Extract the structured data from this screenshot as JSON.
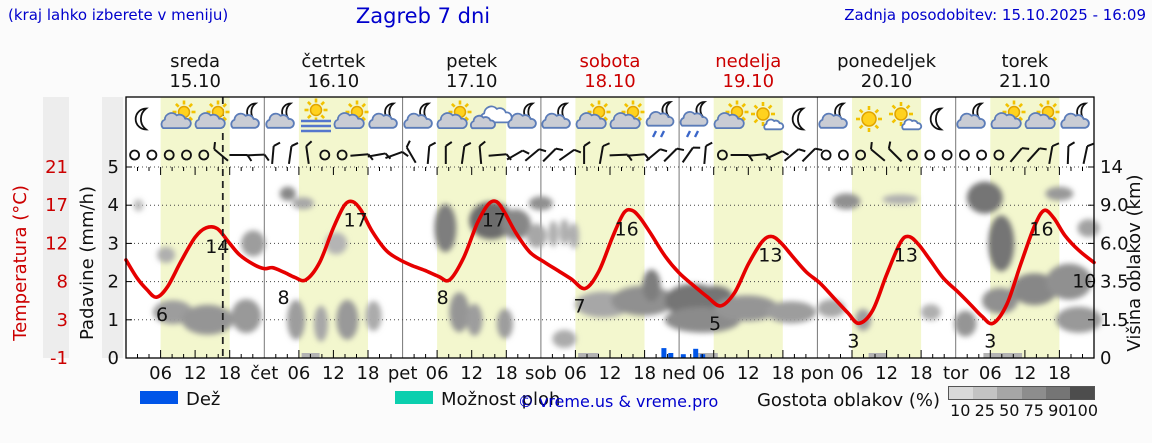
{
  "header": {
    "hint": "(kraj lahko izberete v meniju)",
    "title": "Zagreb 7 dni",
    "updated": "Zadnja posodobitev: 15.10.2025 - 16:09"
  },
  "days": [
    {
      "name": "sreda",
      "date": "15.10",
      "red": false
    },
    {
      "name": "četrtek",
      "date": "16.10",
      "red": false
    },
    {
      "name": "petek",
      "date": "17.10",
      "red": false
    },
    {
      "name": "sobota",
      "date": "18.10",
      "red": true
    },
    {
      "name": "nedelja",
      "date": "19.10",
      "red": true
    },
    {
      "name": "ponedeljek",
      "date": "20.10",
      "red": false
    },
    {
      "name": "torek",
      "date": "21.10",
      "red": false
    }
  ],
  "axes": {
    "temp_label": "Temperatura (°C)",
    "temp_ticks": [
      "21",
      "17",
      "12",
      "8",
      "3",
      "-1"
    ],
    "precip_label": "Padavine (mm/h)",
    "precip_ticks": [
      "5",
      "4",
      "3",
      "2",
      "1",
      "0"
    ],
    "cloud_label": "Višina oblakov (km)",
    "cloud_ticks": [
      "14",
      "9.0",
      "6.0",
      "3.5",
      "1.5",
      "0"
    ],
    "hour_ticks": [
      "06",
      "12",
      "18"
    ],
    "day_abbrevs": [
      "čet",
      "pet",
      "sob",
      "ned",
      "pon",
      "tor"
    ]
  },
  "legend": {
    "rain_label": "Dež",
    "rain_color": "#0055e8",
    "shower_label": "Možnost ploh",
    "shower_color": "#0bcfae",
    "copyright": "© vreme.us & vreme.pro",
    "cloud_scale_label": "Gostota oblakov (%)",
    "cloud_scale_ticks": [
      "10",
      "25",
      "50",
      "75",
      "90",
      "100"
    ],
    "cloud_scale_colors": [
      "#d9d9d9",
      "#c3c3c3",
      "#a6a6a6",
      "#8d8d8d",
      "#757575",
      "#4d4d4d"
    ]
  },
  "chart_data": {
    "type": "line",
    "title": "Zagreb 7 dni",
    "x_unit": "days from sreda 15.10 00:00",
    "ylim_temp_c": [
      -1,
      21
    ],
    "ylim_precip_mmh": [
      0,
      5
    ],
    "ylim_cloud_km": [
      0,
      14
    ],
    "temp_color": "#e60000",
    "daily_summary": [
      {
        "day": "sreda",
        "min": 6,
        "max": 14
      },
      {
        "day": "četrtek",
        "min": 8,
        "max": 17
      },
      {
        "day": "petek",
        "min": 8,
        "max": 17
      },
      {
        "day": "sobota",
        "min": 7,
        "max": 16
      },
      {
        "day": "nedelja",
        "min": 5,
        "max": 13
      },
      {
        "day": "ponedeljek",
        "min": 3,
        "max": 13
      },
      {
        "day": "torek",
        "min": 3,
        "max": 16,
        "evening": 10
      }
    ],
    "temperature_points": [
      [
        0,
        10.3
      ],
      [
        0.08,
        8.2
      ],
      [
        0.15,
        6.9
      ],
      [
        0.22,
        6
      ],
      [
        0.3,
        7.2
      ],
      [
        0.4,
        10.2
      ],
      [
        0.5,
        12.9
      ],
      [
        0.58,
        14
      ],
      [
        0.66,
        13.9
      ],
      [
        0.74,
        12.4
      ],
      [
        0.82,
        10.9
      ],
      [
        0.92,
        9.8
      ],
      [
        1.0,
        9.3
      ],
      [
        1.06,
        9.4
      ],
      [
        1.14,
        8.9
      ],
      [
        1.22,
        8.3
      ],
      [
        1.3,
        8
      ],
      [
        1.4,
        10
      ],
      [
        1.5,
        14
      ],
      [
        1.58,
        16.6
      ],
      [
        1.64,
        17
      ],
      [
        1.7,
        16
      ],
      [
        1.78,
        13.6
      ],
      [
        1.88,
        11.4
      ],
      [
        1.97,
        10.4
      ],
      [
        2.06,
        9.7
      ],
      [
        2.16,
        9.1
      ],
      [
        2.26,
        8.4
      ],
      [
        2.34,
        8
      ],
      [
        2.44,
        10.5
      ],
      [
        2.54,
        14.5
      ],
      [
        2.62,
        16.7
      ],
      [
        2.68,
        17
      ],
      [
        2.74,
        15.7
      ],
      [
        2.82,
        13.4
      ],
      [
        2.92,
        11.2
      ],
      [
        3.02,
        10.1
      ],
      [
        3.12,
        9.1
      ],
      [
        3.22,
        8.1
      ],
      [
        3.32,
        7
      ],
      [
        3.42,
        9
      ],
      [
        3.52,
        13
      ],
      [
        3.6,
        15.7
      ],
      [
        3.66,
        16
      ],
      [
        3.72,
        15.1
      ],
      [
        3.8,
        13.2
      ],
      [
        3.9,
        10.7
      ],
      [
        4.0,
        8.8
      ],
      [
        4.1,
        7.4
      ],
      [
        4.2,
        6.1
      ],
      [
        4.3,
        5
      ],
      [
        4.4,
        6.5
      ],
      [
        4.5,
        9.8
      ],
      [
        4.6,
        12.4
      ],
      [
        4.67,
        13
      ],
      [
        4.74,
        12.2
      ],
      [
        4.82,
        10.7
      ],
      [
        4.92,
        8.9
      ],
      [
        5.02,
        7.6
      ],
      [
        5.12,
        5.9
      ],
      [
        5.22,
        4.2
      ],
      [
        5.3,
        3
      ],
      [
        5.4,
        4.5
      ],
      [
        5.5,
        8.6
      ],
      [
        5.6,
        12.3
      ],
      [
        5.66,
        13
      ],
      [
        5.73,
        12.1
      ],
      [
        5.81,
        10.4
      ],
      [
        5.91,
        8.2
      ],
      [
        6.01,
        6.7
      ],
      [
        6.11,
        5.1
      ],
      [
        6.19,
        3.8
      ],
      [
        6.27,
        3
      ],
      [
        6.37,
        5.2
      ],
      [
        6.47,
        9.8
      ],
      [
        6.57,
        14.2
      ],
      [
        6.64,
        16
      ],
      [
        6.71,
        15.1
      ],
      [
        6.79,
        13.1
      ],
      [
        6.89,
        11.4
      ],
      [
        7,
        10
      ]
    ],
    "extreme_labels": [
      {
        "v": 6,
        "t": 0.26,
        "k": "min"
      },
      {
        "v": 14,
        "t": 0.66,
        "k": "max"
      },
      {
        "v": 8,
        "t": 1.14,
        "k": "min"
      },
      {
        "v": 17,
        "t": 1.66,
        "k": "max"
      },
      {
        "v": 8,
        "t": 2.29,
        "k": "min"
      },
      {
        "v": 17,
        "t": 2.66,
        "k": "max"
      },
      {
        "v": 7,
        "t": 3.28,
        "k": "min"
      },
      {
        "v": 16,
        "t": 3.62,
        "k": "max"
      },
      {
        "v": 5,
        "t": 4.26,
        "k": "min"
      },
      {
        "v": 13,
        "t": 4.66,
        "k": "max"
      },
      {
        "v": 3,
        "t": 5.26,
        "k": "min"
      },
      {
        "v": 13,
        "t": 5.64,
        "k": "max"
      },
      {
        "v": 3,
        "t": 6.25,
        "k": "min"
      },
      {
        "v": 16,
        "t": 6.62,
        "k": "max"
      },
      {
        "v": 10,
        "t": 6.93,
        "k": "end"
      }
    ],
    "rain_bars_mm": [
      [
        3.89,
        0.26
      ],
      [
        3.94,
        0.13
      ],
      [
        4.03,
        0.1
      ],
      [
        4.12,
        0.24
      ],
      [
        4.17,
        0.1
      ]
    ],
    "fog_bars": [
      [
        1.27,
        1.4
      ],
      [
        3.27,
        3.42
      ],
      [
        4.13,
        4.28
      ],
      [
        5.37,
        5.5
      ],
      [
        6.2,
        6.48
      ]
    ],
    "clouds": [
      [
        0.09,
        4.0,
        5,
        6,
        0.2
      ],
      [
        0.29,
        2.7,
        9,
        8,
        0.28
      ],
      [
        0.34,
        1.2,
        20,
        12,
        0.38
      ],
      [
        0.59,
        1.0,
        26,
        15,
        0.42
      ],
      [
        0.87,
        1.1,
        15,
        17,
        0.4
      ],
      [
        0.92,
        3.0,
        12,
        13,
        0.38
      ],
      [
        1.17,
        4.3,
        8,
        7,
        0.5
      ],
      [
        1.28,
        4.05,
        11,
        6,
        0.32
      ],
      [
        1.23,
        1.0,
        9,
        20,
        0.38
      ],
      [
        1.41,
        0.9,
        7,
        18,
        0.32
      ],
      [
        1.52,
        3.0,
        11,
        11,
        0.25
      ],
      [
        1.6,
        1.0,
        11,
        20,
        0.4
      ],
      [
        1.79,
        1.1,
        8,
        15,
        0.3
      ],
      [
        2.31,
        3.4,
        11,
        24,
        0.55
      ],
      [
        2.41,
        1.2,
        10,
        20,
        0.42
      ],
      [
        2.52,
        1.0,
        8,
        16,
        0.38
      ],
      [
        2.64,
        3.6,
        22,
        19,
        0.65
      ],
      [
        2.74,
        0.9,
        8,
        15,
        0.38
      ],
      [
        2.82,
        3.5,
        15,
        15,
        0.5
      ],
      [
        2.97,
        3.2,
        10,
        12,
        0.32
      ],
      [
        3.0,
        4.05,
        12,
        7,
        0.45
      ],
      [
        3.09,
        3.25,
        5,
        13,
        0.28
      ],
      [
        3.17,
        3.3,
        5,
        13,
        0.28
      ],
      [
        3.24,
        3.2,
        5,
        13,
        0.28
      ],
      [
        3.17,
        0.5,
        12,
        9,
        0.3
      ],
      [
        3.45,
        1.4,
        28,
        13,
        0.32
      ],
      [
        3.74,
        1.5,
        32,
        15,
        0.45
      ],
      [
        3.8,
        1.9,
        9,
        16,
        0.55
      ],
      [
        4.1,
        1.5,
        28,
        17,
        0.6
      ],
      [
        4.17,
        1.0,
        38,
        13,
        0.48
      ],
      [
        4.26,
        1.6,
        18,
        11,
        0.6
      ],
      [
        4.49,
        1.3,
        32,
        13,
        0.42
      ],
      [
        4.81,
        1.2,
        25,
        11,
        0.38
      ],
      [
        5.1,
        1.3,
        14,
        9,
        0.32
      ],
      [
        5.21,
        4.1,
        14,
        8,
        0.45
      ],
      [
        5.33,
        1.0,
        8,
        11,
        0.38
      ],
      [
        5.6,
        4.15,
        18,
        5,
        0.28
      ],
      [
        5.82,
        1.2,
        10,
        8,
        0.28
      ],
      [
        6.07,
        0.9,
        11,
        13,
        0.42
      ],
      [
        6.21,
        4.2,
        18,
        16,
        0.6
      ],
      [
        6.33,
        3.0,
        13,
        28,
        0.6
      ],
      [
        6.32,
        1.5,
        18,
        13,
        0.45
      ],
      [
        6.57,
        1.8,
        23,
        16,
        0.5
      ],
      [
        6.75,
        4.3,
        14,
        7,
        0.4
      ],
      [
        6.82,
        2.0,
        23,
        18,
        0.45
      ],
      [
        6.89,
        1.0,
        23,
        13,
        0.4
      ],
      [
        6.96,
        3.4,
        11,
        9,
        0.35
      ]
    ],
    "wind_symbols": [
      "c",
      "c",
      "c",
      "c",
      "c",
      -50,
      90,
      88,
      5,
      8,
      -8,
      "c",
      "c",
      85,
      80,
      70,
      -30,
      5,
      0,
      8,
      -5,
      85,
      60,
      50,
      45,
      55,
      0,
      10,
      88,
      85,
      50,
      45,
      35,
      5,
      "c",
      90,
      85,
      65,
      50,
      45,
      "c",
      "c",
      "c",
      -50,
      -45,
      "c",
      "c",
      "c",
      "c",
      "c",
      "c",
      40,
      42,
      10,
      2,
      12
    ],
    "weather_icons": [
      "moon",
      "sun-cloud",
      "sun-cloud",
      "moon-cloud",
      "moon-cloud",
      "sun-fog",
      "sun-cloud",
      "moon-cloud",
      "moon-cloud",
      "sun-cloud",
      "clouds",
      "moon-cloud",
      "moon-cloud",
      "sun-cloud",
      "sun-cloud",
      "moon-cloud-drizzle",
      "moon-cloud-drizzle",
      "sun-cloud",
      "sun-small-cloud",
      "moon",
      "moon-cloud",
      "sun",
      "sun-small-cloud",
      "moon",
      "moon-cloud",
      "sun-cloud",
      "sun-cloud",
      "moon-cloud"
    ],
    "now_line_t": 0.7,
    "day_band_hours": [
      6,
      18
    ],
    "day_band_color": "#f3f7ce",
    "grid": true
  }
}
